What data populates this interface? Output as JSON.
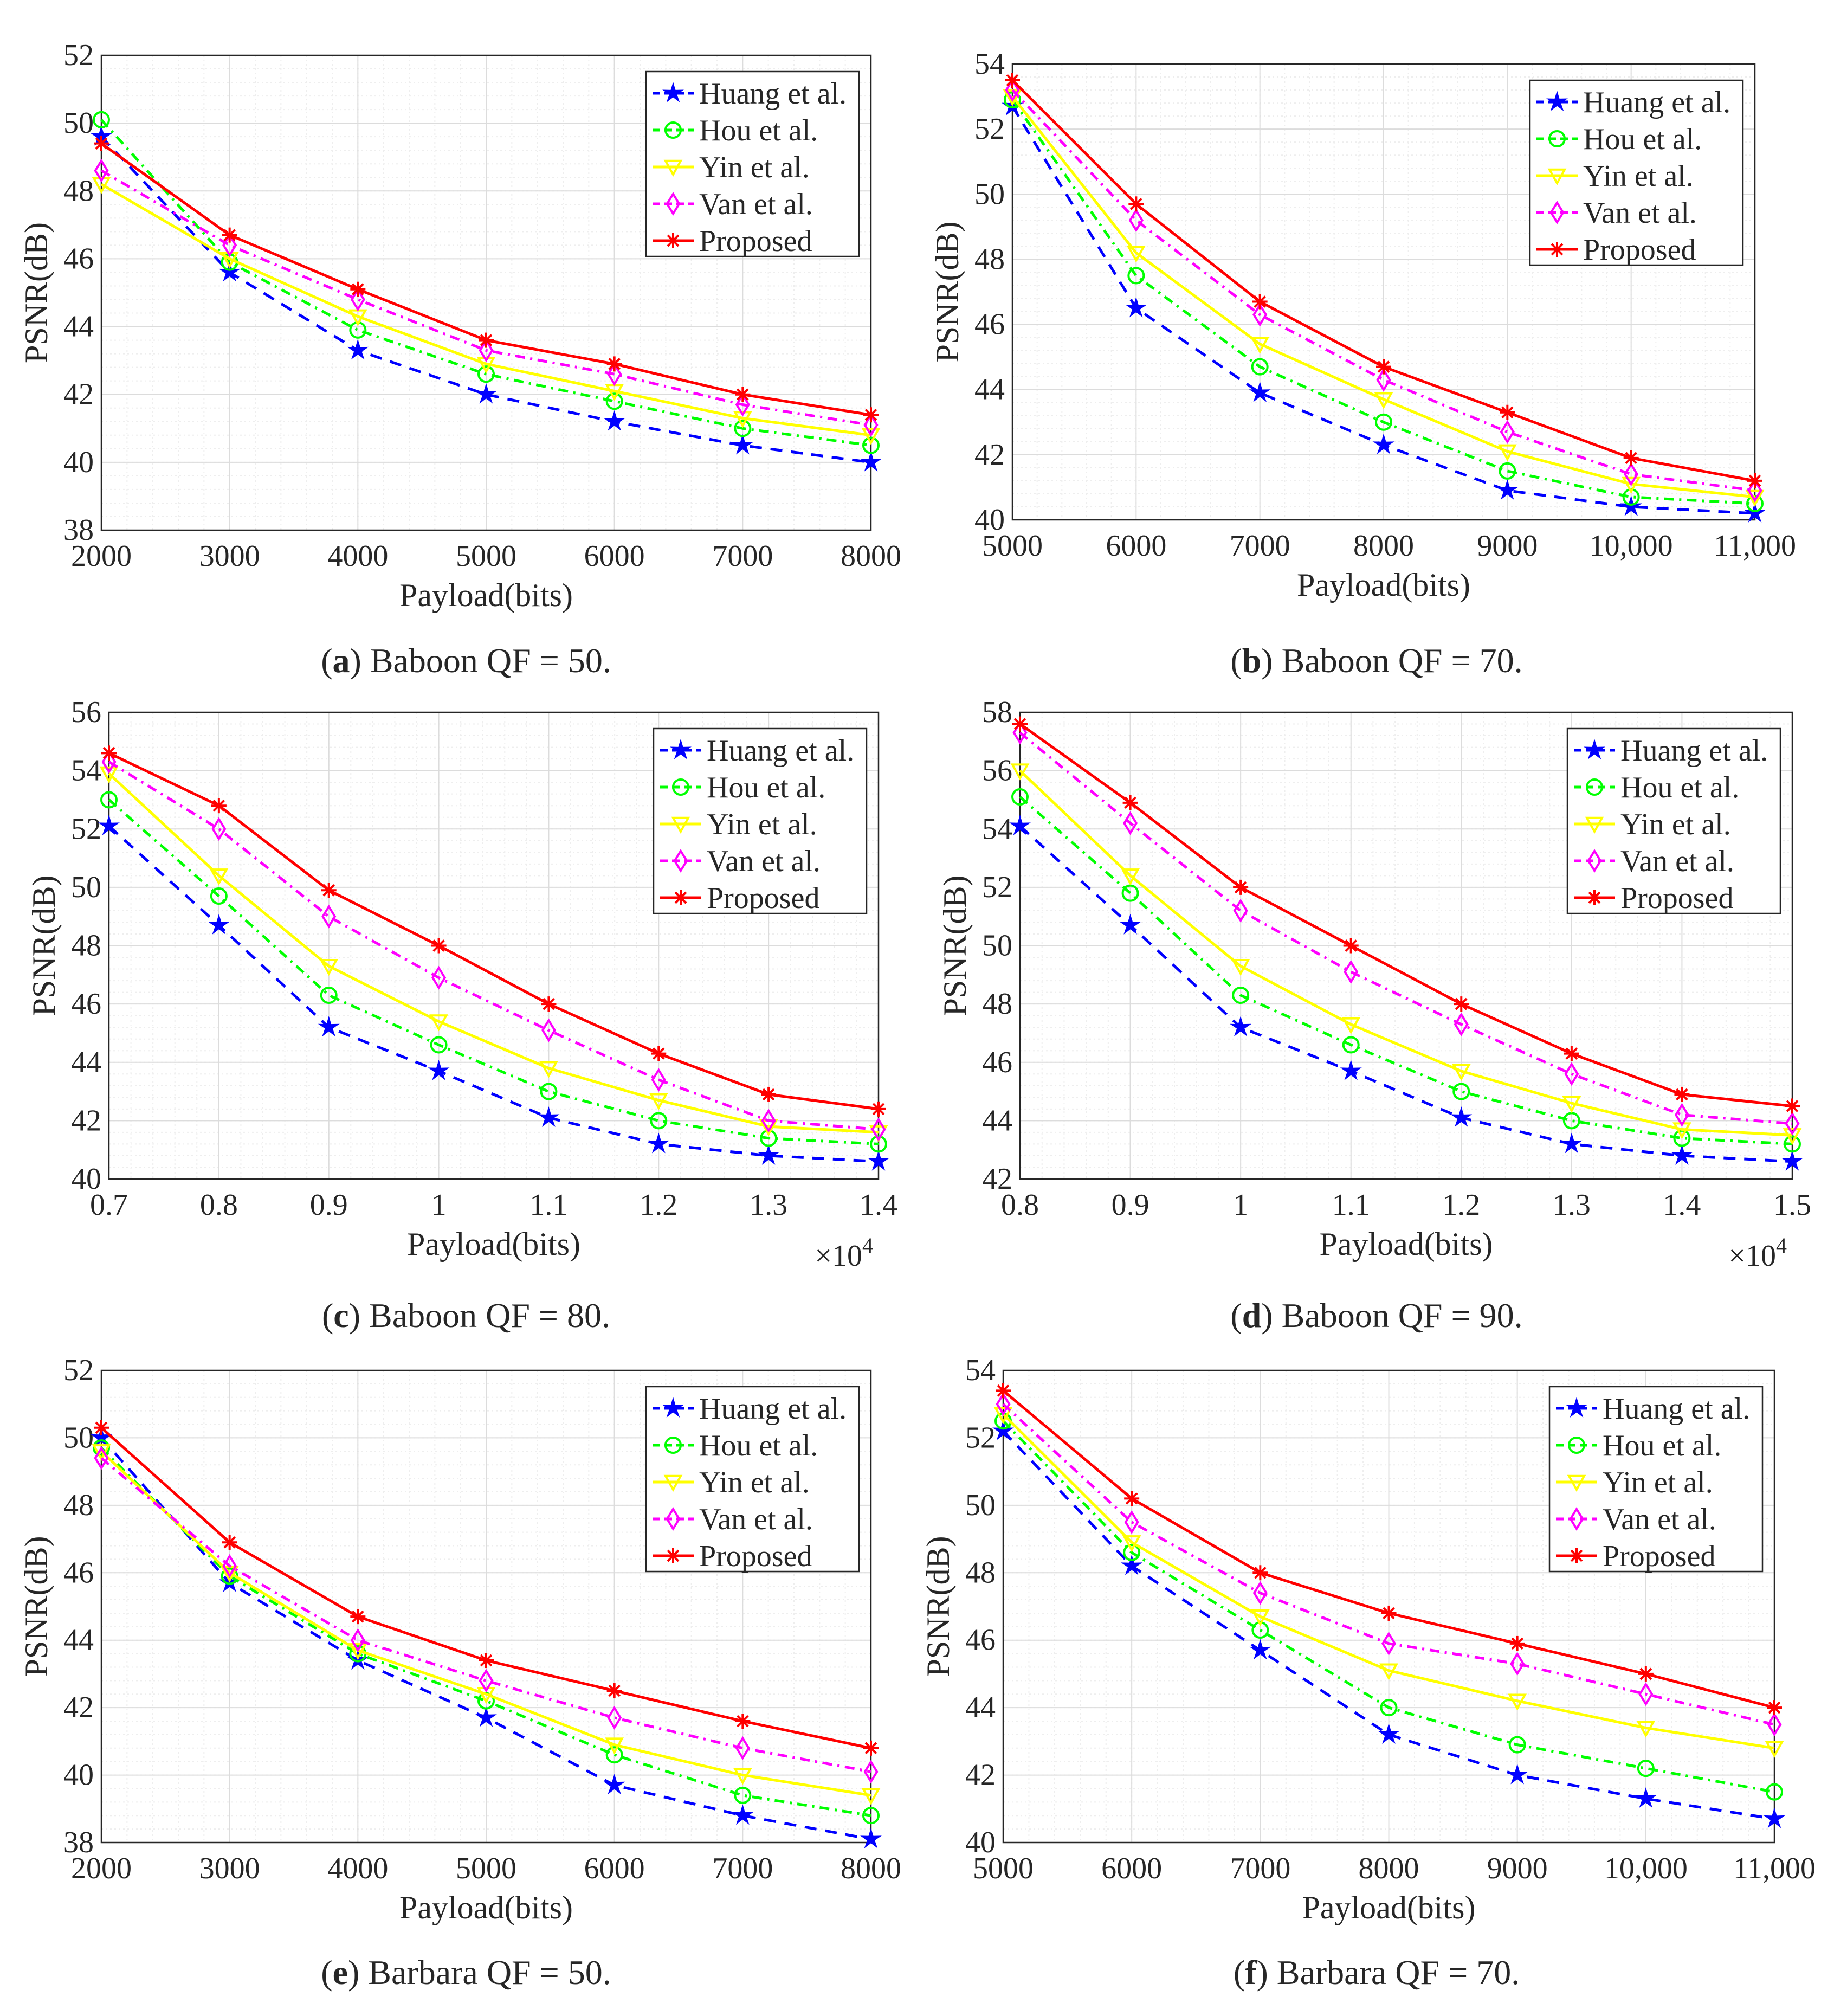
{
  "chart_data": [
    {
      "type": "line",
      "caption_label": "a",
      "caption": " Baboon QF = 50.",
      "xlabel": "Payload(bits)",
      "ylabel": "PSNR(dB)",
      "x": [
        2000,
        3000,
        4000,
        5000,
        6000,
        7000,
        8000
      ],
      "xtick_labels": [
        "2000",
        "3000",
        "4000",
        "5000",
        "6000",
        "7000",
        "8000"
      ],
      "xlim": [
        2000,
        8000
      ],
      "ylim": [
        38,
        52
      ],
      "yticks": [
        38,
        40,
        42,
        44,
        46,
        48,
        50,
        52
      ],
      "grid": true,
      "legend": "top-right",
      "series": [
        {
          "name": "Huang et al.",
          "color": "#0000ff",
          "values": [
            49.6,
            45.6,
            43.3,
            42.0,
            41.2,
            40.5,
            40.0
          ]
        },
        {
          "name": "Hou et al.",
          "color": "#00ff00",
          "values": [
            50.1,
            45.9,
            43.9,
            42.6,
            41.8,
            41.0,
            40.5
          ]
        },
        {
          "name": "Yin et al.",
          "color": "#ffff00",
          "values": [
            48.2,
            46.0,
            44.3,
            42.9,
            42.1,
            41.3,
            40.8
          ]
        },
        {
          "name": "Van et al.",
          "color": "#ff00ff",
          "values": [
            48.6,
            46.4,
            44.8,
            43.3,
            42.6,
            41.7,
            41.1
          ]
        },
        {
          "name": "Proposed",
          "color": "#ff0000",
          "values": [
            49.4,
            46.7,
            45.1,
            43.6,
            42.9,
            42.0,
            41.4
          ]
        }
      ]
    },
    {
      "type": "line",
      "caption_label": "b",
      "caption": " Baboon QF = 70.",
      "xlabel": "Payload(bits)",
      "ylabel": "PSNR(dB)",
      "x": [
        5000,
        6000,
        7000,
        8000,
        9000,
        10000,
        11000
      ],
      "xtick_labels": [
        "5000",
        "6000",
        "7000",
        "8000",
        "9000",
        "10,000",
        "11,000"
      ],
      "xlim": [
        5000,
        11000
      ],
      "ylim": [
        40,
        54
      ],
      "yticks": [
        40,
        42,
        44,
        46,
        48,
        50,
        52,
        54
      ],
      "grid": true,
      "legend": "top-right",
      "series": [
        {
          "name": "Huang et al.",
          "color": "#0000ff",
          "values": [
            52.7,
            46.5,
            43.9,
            42.3,
            40.9,
            40.4,
            40.2
          ]
        },
        {
          "name": "Hou et al.",
          "color": "#00ff00",
          "values": [
            52.9,
            47.5,
            44.7,
            43.0,
            41.5,
            40.7,
            40.5
          ]
        },
        {
          "name": "Yin et al.",
          "color": "#ffff00",
          "values": [
            53.0,
            48.2,
            45.4,
            43.7,
            42.1,
            41.1,
            40.7
          ]
        },
        {
          "name": "Van et al.",
          "color": "#ff00ff",
          "values": [
            53.2,
            49.2,
            46.3,
            44.3,
            42.7,
            41.4,
            40.9
          ]
        },
        {
          "name": "Proposed",
          "color": "#ff0000",
          "values": [
            53.5,
            49.7,
            46.7,
            44.7,
            43.3,
            41.9,
            41.2
          ]
        }
      ]
    },
    {
      "type": "line",
      "caption_label": "c",
      "caption": " Baboon QF = 80.",
      "xlabel": "Payload(bits)",
      "ylabel": "PSNR(dB)",
      "multiplier": "×10",
      "exponent": "4",
      "x": [
        0.7,
        0.8,
        0.9,
        1.0,
        1.1,
        1.2,
        1.3,
        1.4
      ],
      "xtick_labels": [
        "0.7",
        "0.8",
        "0.9",
        "1",
        "1.1",
        "1.2",
        "1.3",
        "1.4"
      ],
      "xlim": [
        0.7,
        1.4
      ],
      "ylim": [
        40,
        56
      ],
      "yticks": [
        40,
        42,
        44,
        46,
        48,
        50,
        52,
        54,
        56
      ],
      "grid": true,
      "legend": "top-right",
      "series": [
        {
          "name": "Huang et al.",
          "color": "#0000ff",
          "values": [
            52.1,
            48.7,
            45.2,
            43.7,
            42.1,
            41.2,
            40.8,
            40.6
          ]
        },
        {
          "name": "Hou et al.",
          "color": "#00ff00",
          "values": [
            53.0,
            49.7,
            46.3,
            44.6,
            43.0,
            42.0,
            41.4,
            41.2
          ]
        },
        {
          "name": "Yin et al.",
          "color": "#ffff00",
          "values": [
            53.9,
            50.4,
            47.3,
            45.4,
            43.8,
            42.7,
            41.8,
            41.6
          ]
        },
        {
          "name": "Van et al.",
          "color": "#ff00ff",
          "values": [
            54.3,
            52.0,
            49.0,
            46.9,
            45.1,
            43.4,
            42.0,
            41.7
          ]
        },
        {
          "name": "Proposed",
          "color": "#ff0000",
          "values": [
            54.6,
            52.8,
            49.9,
            48.0,
            46.0,
            44.3,
            42.9,
            42.4
          ]
        }
      ]
    },
    {
      "type": "line",
      "caption_label": "d",
      "caption": " Baboon QF = 90.",
      "xlabel": "Payload(bits)",
      "ylabel": "PSNR(dB)",
      "multiplier": "×10",
      "exponent": "4",
      "x": [
        0.8,
        0.9,
        1.0,
        1.1,
        1.2,
        1.3,
        1.4,
        1.5
      ],
      "xtick_labels": [
        "0.8",
        "0.9",
        "1",
        "1.1",
        "1.2",
        "1.3",
        "1.4",
        "1.5"
      ],
      "xlim": [
        0.8,
        1.5
      ],
      "ylim": [
        42,
        58
      ],
      "yticks": [
        42,
        44,
        46,
        48,
        50,
        52,
        54,
        56,
        58
      ],
      "grid": true,
      "legend": "top-right",
      "series": [
        {
          "name": "Huang et al.",
          "color": "#0000ff",
          "values": [
            54.1,
            50.7,
            47.2,
            45.7,
            44.1,
            43.2,
            42.8,
            42.6
          ]
        },
        {
          "name": "Hou et al.",
          "color": "#00ff00",
          "values": [
            55.1,
            51.8,
            48.3,
            46.6,
            45.0,
            44.0,
            43.4,
            43.2
          ]
        },
        {
          "name": "Yin et al.",
          "color": "#ffff00",
          "values": [
            56.0,
            52.4,
            49.3,
            47.3,
            45.7,
            44.6,
            43.7,
            43.5
          ]
        },
        {
          "name": "Van et al.",
          "color": "#ff00ff",
          "values": [
            57.3,
            54.2,
            51.2,
            49.1,
            47.3,
            45.6,
            44.2,
            43.9
          ]
        },
        {
          "name": "Proposed",
          "color": "#ff0000",
          "values": [
            57.6,
            54.9,
            52.0,
            50.0,
            48.0,
            46.3,
            44.9,
            44.5
          ]
        }
      ]
    },
    {
      "type": "line",
      "caption_label": "e",
      "caption": " Barbara QF = 50.",
      "xlabel": "Payload(bits)",
      "ylabel": "PSNR(dB)",
      "x": [
        2000,
        3000,
        4000,
        5000,
        6000,
        7000,
        8000
      ],
      "xtick_labels": [
        "2000",
        "3000",
        "4000",
        "5000",
        "6000",
        "7000",
        "8000"
      ],
      "xlim": [
        2000,
        8000
      ],
      "ylim": [
        38,
        52
      ],
      "yticks": [
        38,
        40,
        42,
        44,
        46,
        48,
        50,
        52
      ],
      "grid": true,
      "legend": "top-right",
      "series": [
        {
          "name": "Huang et al.",
          "color": "#0000ff",
          "values": [
            50.0,
            45.7,
            43.4,
            41.7,
            39.7,
            38.8,
            38.1
          ]
        },
        {
          "name": "Hou et al.",
          "color": "#00ff00",
          "values": [
            49.7,
            45.9,
            43.6,
            42.2,
            40.6,
            39.4,
            38.8
          ]
        },
        {
          "name": "Yin et al.",
          "color": "#ffff00",
          "values": [
            49.6,
            46.0,
            43.7,
            42.4,
            40.9,
            40.0,
            39.4
          ]
        },
        {
          "name": "Van et al.",
          "color": "#ff00ff",
          "values": [
            49.4,
            46.2,
            44.0,
            42.8,
            41.7,
            40.8,
            40.1
          ]
        },
        {
          "name": "Proposed",
          "color": "#ff0000",
          "values": [
            50.3,
            46.9,
            44.7,
            43.4,
            42.5,
            41.6,
            40.8
          ]
        }
      ]
    },
    {
      "type": "line",
      "caption_label": "f",
      "caption": " Barbara QF = 70.",
      "xlabel": "Payload(bits)",
      "ylabel": "PSNR(dB)",
      "x": [
        5000,
        6000,
        7000,
        8000,
        9000,
        10000,
        11000
      ],
      "xtick_labels": [
        "5000",
        "6000",
        "7000",
        "8000",
        "9000",
        "10,000",
        "11,000"
      ],
      "xlim": [
        5000,
        11000
      ],
      "ylim": [
        40,
        54
      ],
      "yticks": [
        40,
        42,
        44,
        46,
        48,
        50,
        52,
        54
      ],
      "grid": true,
      "legend": "top-right",
      "series": [
        {
          "name": "Huang et al.",
          "color": "#0000ff",
          "values": [
            52.2,
            48.2,
            45.7,
            43.2,
            42.0,
            41.3,
            40.7
          ]
        },
        {
          "name": "Hou et al.",
          "color": "#00ff00",
          "values": [
            52.5,
            48.6,
            46.3,
            44.0,
            42.9,
            42.2,
            41.5
          ]
        },
        {
          "name": "Yin et al.",
          "color": "#ffff00",
          "values": [
            52.7,
            48.9,
            46.7,
            45.1,
            44.2,
            43.4,
            42.8
          ]
        },
        {
          "name": "Van et al.",
          "color": "#ff00ff",
          "values": [
            53.0,
            49.5,
            47.4,
            45.9,
            45.3,
            44.4,
            43.5
          ]
        },
        {
          "name": "Proposed",
          "color": "#ff0000",
          "values": [
            53.4,
            50.2,
            48.0,
            46.8,
            45.9,
            45.0,
            44.0
          ]
        }
      ]
    }
  ]
}
